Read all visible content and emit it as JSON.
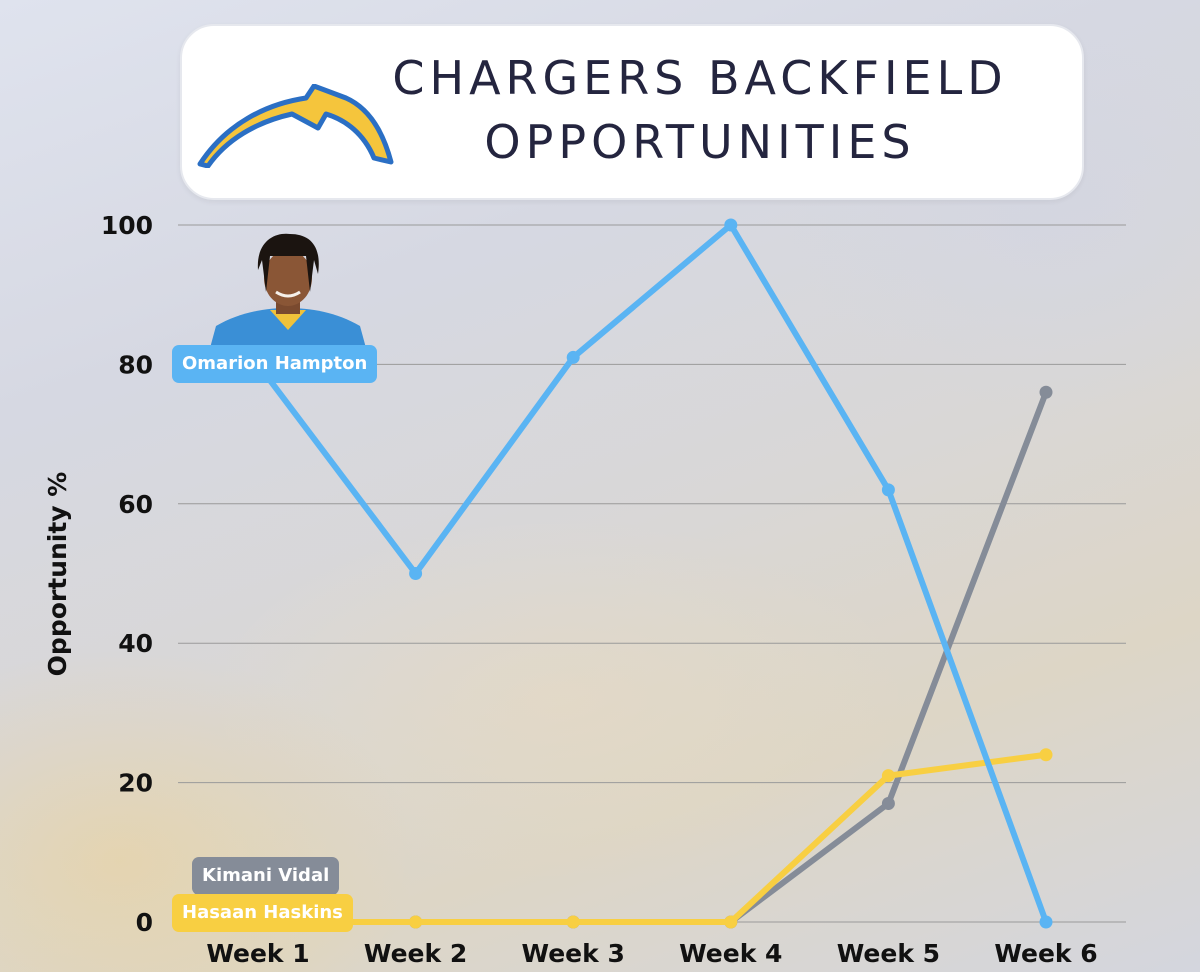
{
  "title": {
    "line1": "CHARGERS BACKFIELD",
    "line2": "OPPORTUNITIES"
  },
  "logo": {
    "icon": "chargers-bolt-logo",
    "colors": {
      "fill": "#f5c53c",
      "outline": "#2b6fc4"
    }
  },
  "chart_data": {
    "type": "line",
    "ylabel": "Opportunity %",
    "xlabel": "",
    "ylim": [
      0,
      100
    ],
    "yticks": [
      0,
      20,
      40,
      60,
      80,
      100
    ],
    "grid": true,
    "categories": [
      "Week 1",
      "Week 2",
      "Week 3",
      "Week 4",
      "Week 5",
      "Week 6"
    ],
    "series": [
      {
        "name": "Omarion Hampton",
        "color": "#5ab4f3",
        "values": [
          80,
          50,
          81,
          100,
          62,
          0
        ]
      },
      {
        "name": "Kimani Vidal",
        "color": "#858c98",
        "values": [
          0,
          0,
          0,
          0,
          17,
          76
        ]
      },
      {
        "name": "Hasaan Haskins",
        "color": "#f8cf42",
        "values": [
          0,
          0,
          0,
          0,
          21,
          24
        ]
      }
    ]
  }
}
